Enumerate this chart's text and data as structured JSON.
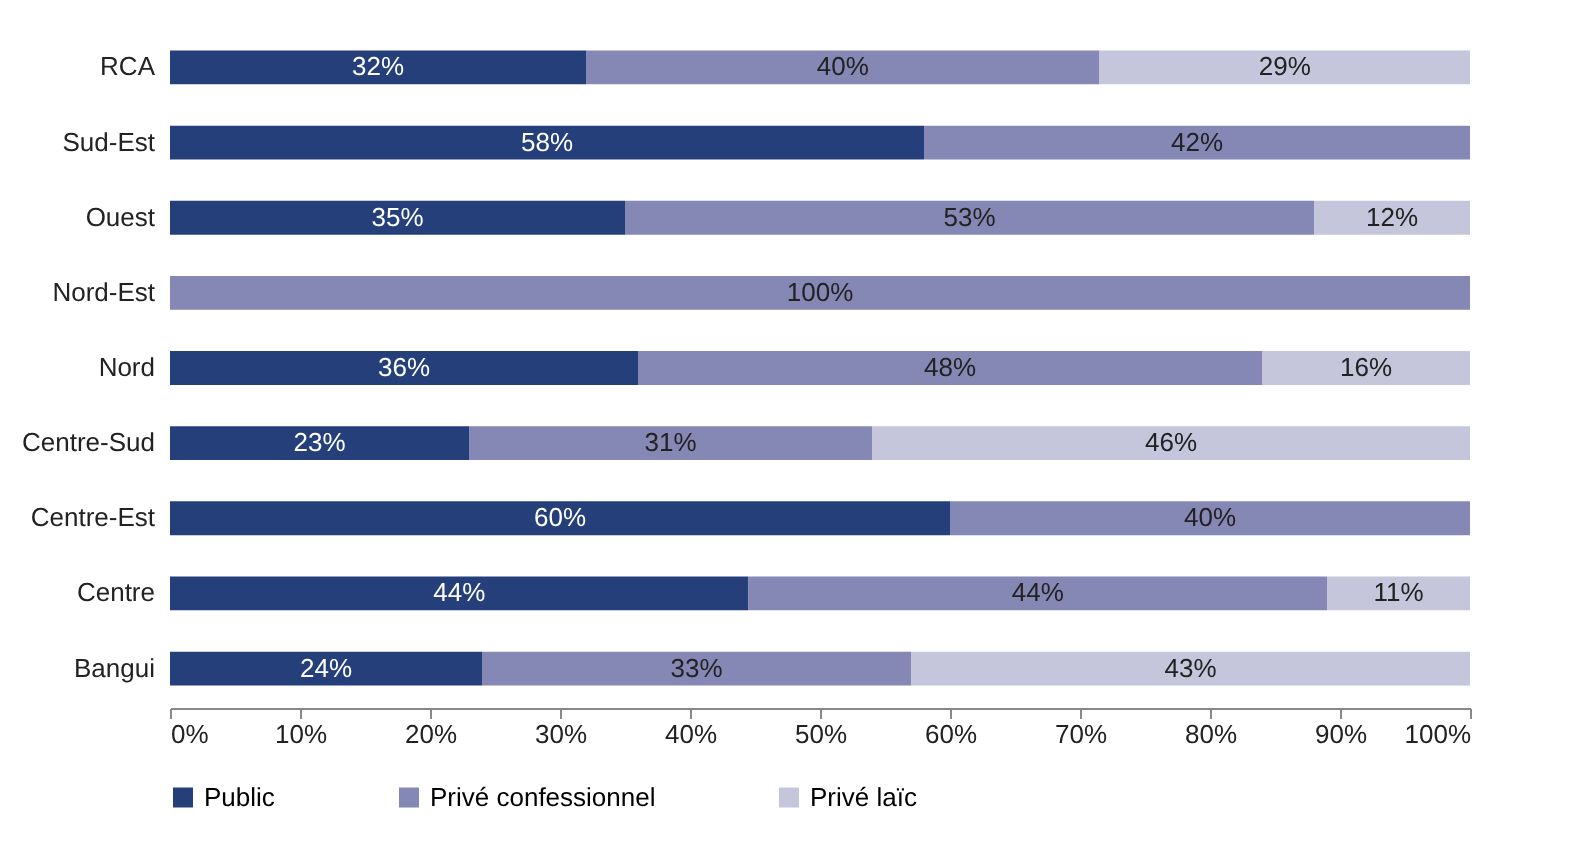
{
  "chart_data": {
    "type": "bar",
    "orientation": "horizontal",
    "stacked": true,
    "categories": [
      "RCA",
      "Sud-Est",
      "Ouest",
      "Nord-Est",
      "Nord",
      "Centre-Sud",
      "Centre-Est",
      "Centre",
      "Bangui"
    ],
    "series": [
      {
        "name": "Public",
        "color": "#243f7a",
        "values": [
          32,
          58,
          35,
          0,
          36,
          23,
          60,
          44.5,
          24
        ],
        "value_labels": [
          "32%",
          "58%",
          "35%",
          null,
          "36%",
          "23%",
          "60%",
          "44%",
          "24%"
        ]
      },
      {
        "name": "Privé confessionnel",
        "color": "#8588b5",
        "values": [
          39.5,
          42,
          53,
          100,
          48,
          31,
          40,
          44.5,
          33
        ],
        "value_labels": [
          "40%",
          "42%",
          "53%",
          "100%",
          "48%",
          "31%",
          "40%",
          "44%",
          "33%"
        ]
      },
      {
        "name": "Privé laïc",
        "color": "#c5c6dc",
        "values": [
          28.5,
          0,
          12,
          0,
          16,
          46,
          0,
          11,
          43
        ],
        "value_labels": [
          "29%",
          null,
          "12%",
          null,
          "16%",
          "46%",
          null,
          "11%",
          "43%"
        ]
      }
    ],
    "xlim": [
      0,
      100
    ],
    "xticks": [
      {
        "value": 0,
        "label": "0%"
      },
      {
        "value": 10,
        "label": "10%"
      },
      {
        "value": 20,
        "label": "20%"
      },
      {
        "value": 30,
        "label": "30%"
      },
      {
        "value": 40,
        "label": "40%"
      },
      {
        "value": 50,
        "label": "50%"
      },
      {
        "value": 60,
        "label": "60%"
      },
      {
        "value": 70,
        "label": "70%"
      },
      {
        "value": 80,
        "label": "80%"
      },
      {
        "value": 90,
        "label": "90%"
      },
      {
        "value": 100,
        "label": "100%"
      }
    ],
    "grid": false,
    "legend": "bottom"
  }
}
